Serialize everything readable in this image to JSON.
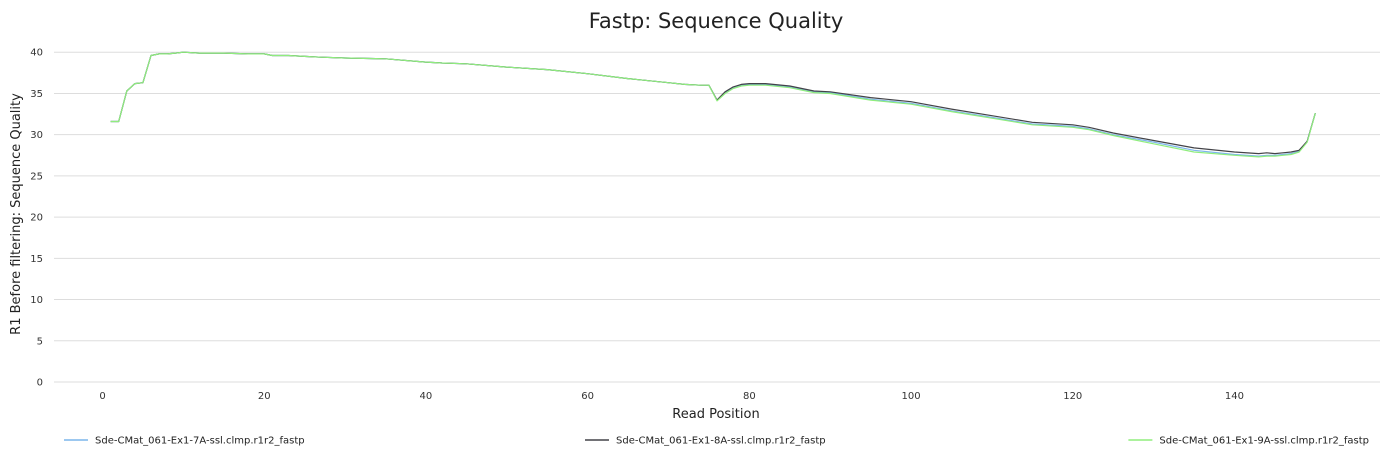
{
  "chart_data": {
    "type": "line",
    "title": "Fastp: Sequence Quality",
    "xlabel": "Read Position",
    "ylabel": "R1 Before filtering: Sequence Quality",
    "xlim": [
      -6,
      158
    ],
    "ylim": [
      0,
      41
    ],
    "xticks": [
      0,
      20,
      40,
      60,
      80,
      100,
      120,
      140
    ],
    "yticks": [
      0,
      5,
      10,
      15,
      20,
      25,
      30,
      35,
      40
    ],
    "grid": "horizontal",
    "legend_position": "bottom",
    "x": [
      1,
      2,
      3,
      4,
      5,
      6,
      7,
      8,
      9,
      10,
      12,
      15,
      18,
      20,
      21,
      22,
      23,
      25,
      27,
      30,
      35,
      40,
      42,
      45,
      50,
      55,
      60,
      65,
      70,
      72,
      74,
      75,
      76,
      77,
      78,
      79,
      80,
      82,
      85,
      88,
      90,
      95,
      100,
      105,
      110,
      115,
      120,
      122,
      125,
      130,
      135,
      140,
      143,
      144,
      145,
      146,
      147,
      148,
      149,
      150
    ],
    "series": [
      {
        "name": "Sde-CMat_061-Ex1-7A-ssl.clmp.r1r2_fastp",
        "color": "#7cb5ec",
        "values": [
          31.6,
          31.6,
          35.3,
          36.2,
          36.3,
          39.6,
          39.8,
          39.8,
          39.9,
          40.0,
          39.9,
          39.9,
          39.8,
          39.8,
          39.6,
          39.6,
          39.6,
          39.5,
          39.4,
          39.3,
          39.2,
          38.8,
          38.7,
          38.6,
          38.2,
          37.9,
          37.4,
          36.8,
          36.3,
          36.1,
          36.0,
          36.0,
          34.2,
          35.1,
          35.7,
          36.0,
          36.1,
          36.1,
          35.8,
          35.2,
          35.1,
          34.3,
          33.8,
          32.9,
          32.1,
          31.3,
          31.0,
          30.7,
          30.0,
          29.1,
          28.1,
          27.6,
          27.4,
          27.5,
          27.5,
          27.6,
          27.7,
          28.0,
          29.2,
          32.6
        ]
      },
      {
        "name": "Sde-CMat_061-Ex1-8A-ssl.clmp.r1r2_fastp",
        "color": "#434348",
        "values": [
          31.6,
          31.6,
          35.3,
          36.2,
          36.3,
          39.6,
          39.8,
          39.8,
          39.9,
          40.0,
          39.9,
          39.9,
          39.8,
          39.8,
          39.6,
          39.6,
          39.6,
          39.5,
          39.4,
          39.3,
          39.2,
          38.8,
          38.7,
          38.6,
          38.2,
          37.9,
          37.4,
          36.8,
          36.3,
          36.1,
          36.0,
          36.0,
          34.2,
          35.2,
          35.8,
          36.1,
          36.2,
          36.2,
          35.9,
          35.3,
          35.2,
          34.5,
          34.0,
          33.1,
          32.3,
          31.5,
          31.2,
          30.9,
          30.2,
          29.3,
          28.4,
          27.9,
          27.7,
          27.8,
          27.7,
          27.8,
          27.9,
          28.1,
          29.2,
          32.6
        ]
      },
      {
        "name": "Sde-CMat_061-Ex1-9A-ssl.clmp.r1r2_fastp",
        "color": "#90ed7d",
        "values": [
          31.6,
          31.6,
          35.3,
          36.2,
          36.3,
          39.6,
          39.8,
          39.8,
          39.9,
          40.0,
          39.9,
          39.9,
          39.8,
          39.8,
          39.6,
          39.6,
          39.6,
          39.5,
          39.4,
          39.3,
          39.2,
          38.8,
          38.7,
          38.6,
          38.2,
          37.9,
          37.4,
          36.8,
          36.3,
          36.1,
          36.0,
          36.0,
          34.1,
          35.0,
          35.6,
          35.9,
          36.0,
          36.0,
          35.7,
          35.1,
          35.0,
          34.2,
          33.7,
          32.8,
          32.0,
          31.2,
          30.9,
          30.6,
          29.9,
          28.9,
          27.9,
          27.5,
          27.3,
          27.4,
          27.4,
          27.5,
          27.6,
          27.9,
          29.1,
          32.6
        ]
      }
    ]
  }
}
